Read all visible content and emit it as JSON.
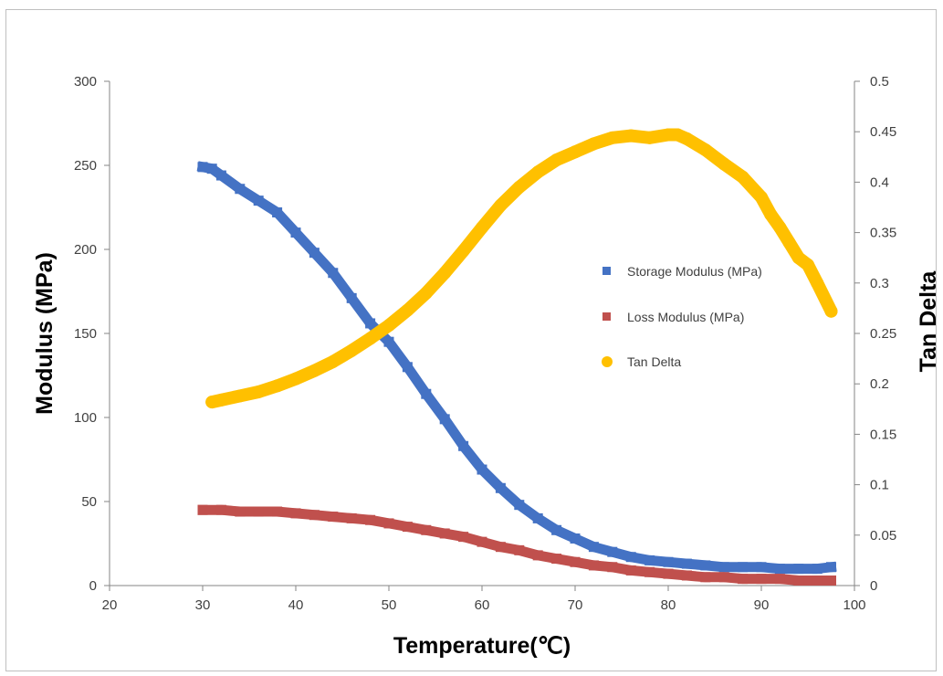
{
  "chart_data": {
    "type": "scatter",
    "xlabel": "Temperature(℃)",
    "ylabel": "Modulus (MPa)",
    "y2label": "Tan Delta",
    "xlim": [
      20,
      100
    ],
    "ylim": [
      0,
      300
    ],
    "y2lim": [
      0,
      0.5
    ],
    "xticks": [
      "20",
      "30",
      "40",
      "50",
      "60",
      "70",
      "80",
      "90",
      "100"
    ],
    "yticks": [
      "0",
      "50",
      "100",
      "150",
      "200",
      "250",
      "300"
    ],
    "y2ticks": [
      "0",
      "0.05",
      "0.1",
      "0.15",
      "0.2",
      "0.25",
      "0.3",
      "0.35",
      "0.4",
      "0.45",
      "0.5"
    ],
    "grid": false,
    "legend_position": "right-middle",
    "series": [
      {
        "name": "Storage Modulus (MPa)",
        "axis": "left",
        "marker": "square",
        "color": "#4472C4",
        "x": [
          30,
          31,
          32,
          34,
          36,
          38,
          40,
          42,
          44,
          46,
          48,
          50,
          52,
          54,
          56,
          58,
          60,
          62,
          64,
          66,
          68,
          70,
          72,
          74,
          76,
          78,
          80,
          82,
          84,
          86,
          88,
          90,
          92,
          94,
          96,
          97.5
        ],
        "y": [
          249,
          248,
          244,
          236,
          229,
          222,
          210,
          198,
          186,
          171,
          156,
          145,
          130,
          114,
          99,
          83,
          69,
          58,
          48,
          40,
          33,
          28,
          23,
          20,
          17,
          15,
          14,
          13,
          12,
          11,
          11,
          11,
          10,
          10,
          10,
          11
        ]
      },
      {
        "name": "Loss Modulus (MPa)",
        "axis": "left",
        "marker": "square",
        "color": "#C0504D",
        "x": [
          30,
          32,
          34,
          36,
          38,
          40,
          42,
          44,
          46,
          48,
          50,
          52,
          54,
          56,
          58,
          60,
          62,
          64,
          66,
          68,
          70,
          72,
          74,
          76,
          78,
          80,
          82,
          84,
          86,
          88,
          90,
          92,
          94,
          96,
          97.5
        ],
        "y": [
          45,
          45,
          44,
          44,
          44,
          43,
          42,
          41,
          40,
          39,
          37,
          35,
          33,
          31,
          29,
          26,
          23,
          21,
          18,
          16,
          14,
          12,
          11,
          9,
          8,
          7,
          6,
          5,
          5,
          4,
          4,
          4,
          3,
          3,
          3
        ]
      },
      {
        "name": "Tan Delta",
        "axis": "right",
        "marker": "circle",
        "color": "#FFC000",
        "x": [
          31,
          32,
          34,
          36,
          38,
          40,
          42,
          44,
          46,
          48,
          50,
          52,
          54,
          56,
          58,
          60,
          62,
          64,
          66,
          68,
          70,
          72,
          74,
          76,
          78,
          80,
          81,
          82,
          84,
          86,
          88,
          90,
          91,
          92,
          93,
          94,
          95,
          96,
          97.5
        ],
        "y": [
          0.182,
          0.184,
          0.188,
          0.192,
          0.198,
          0.205,
          0.213,
          0.222,
          0.233,
          0.245,
          0.258,
          0.273,
          0.29,
          0.31,
          0.332,
          0.355,
          0.377,
          0.395,
          0.41,
          0.422,
          0.43,
          0.438,
          0.444,
          0.446,
          0.444,
          0.447,
          0.447,
          0.443,
          0.432,
          0.418,
          0.405,
          0.385,
          0.368,
          0.355,
          0.34,
          0.325,
          0.318,
          0.3,
          0.272
        ]
      }
    ]
  }
}
